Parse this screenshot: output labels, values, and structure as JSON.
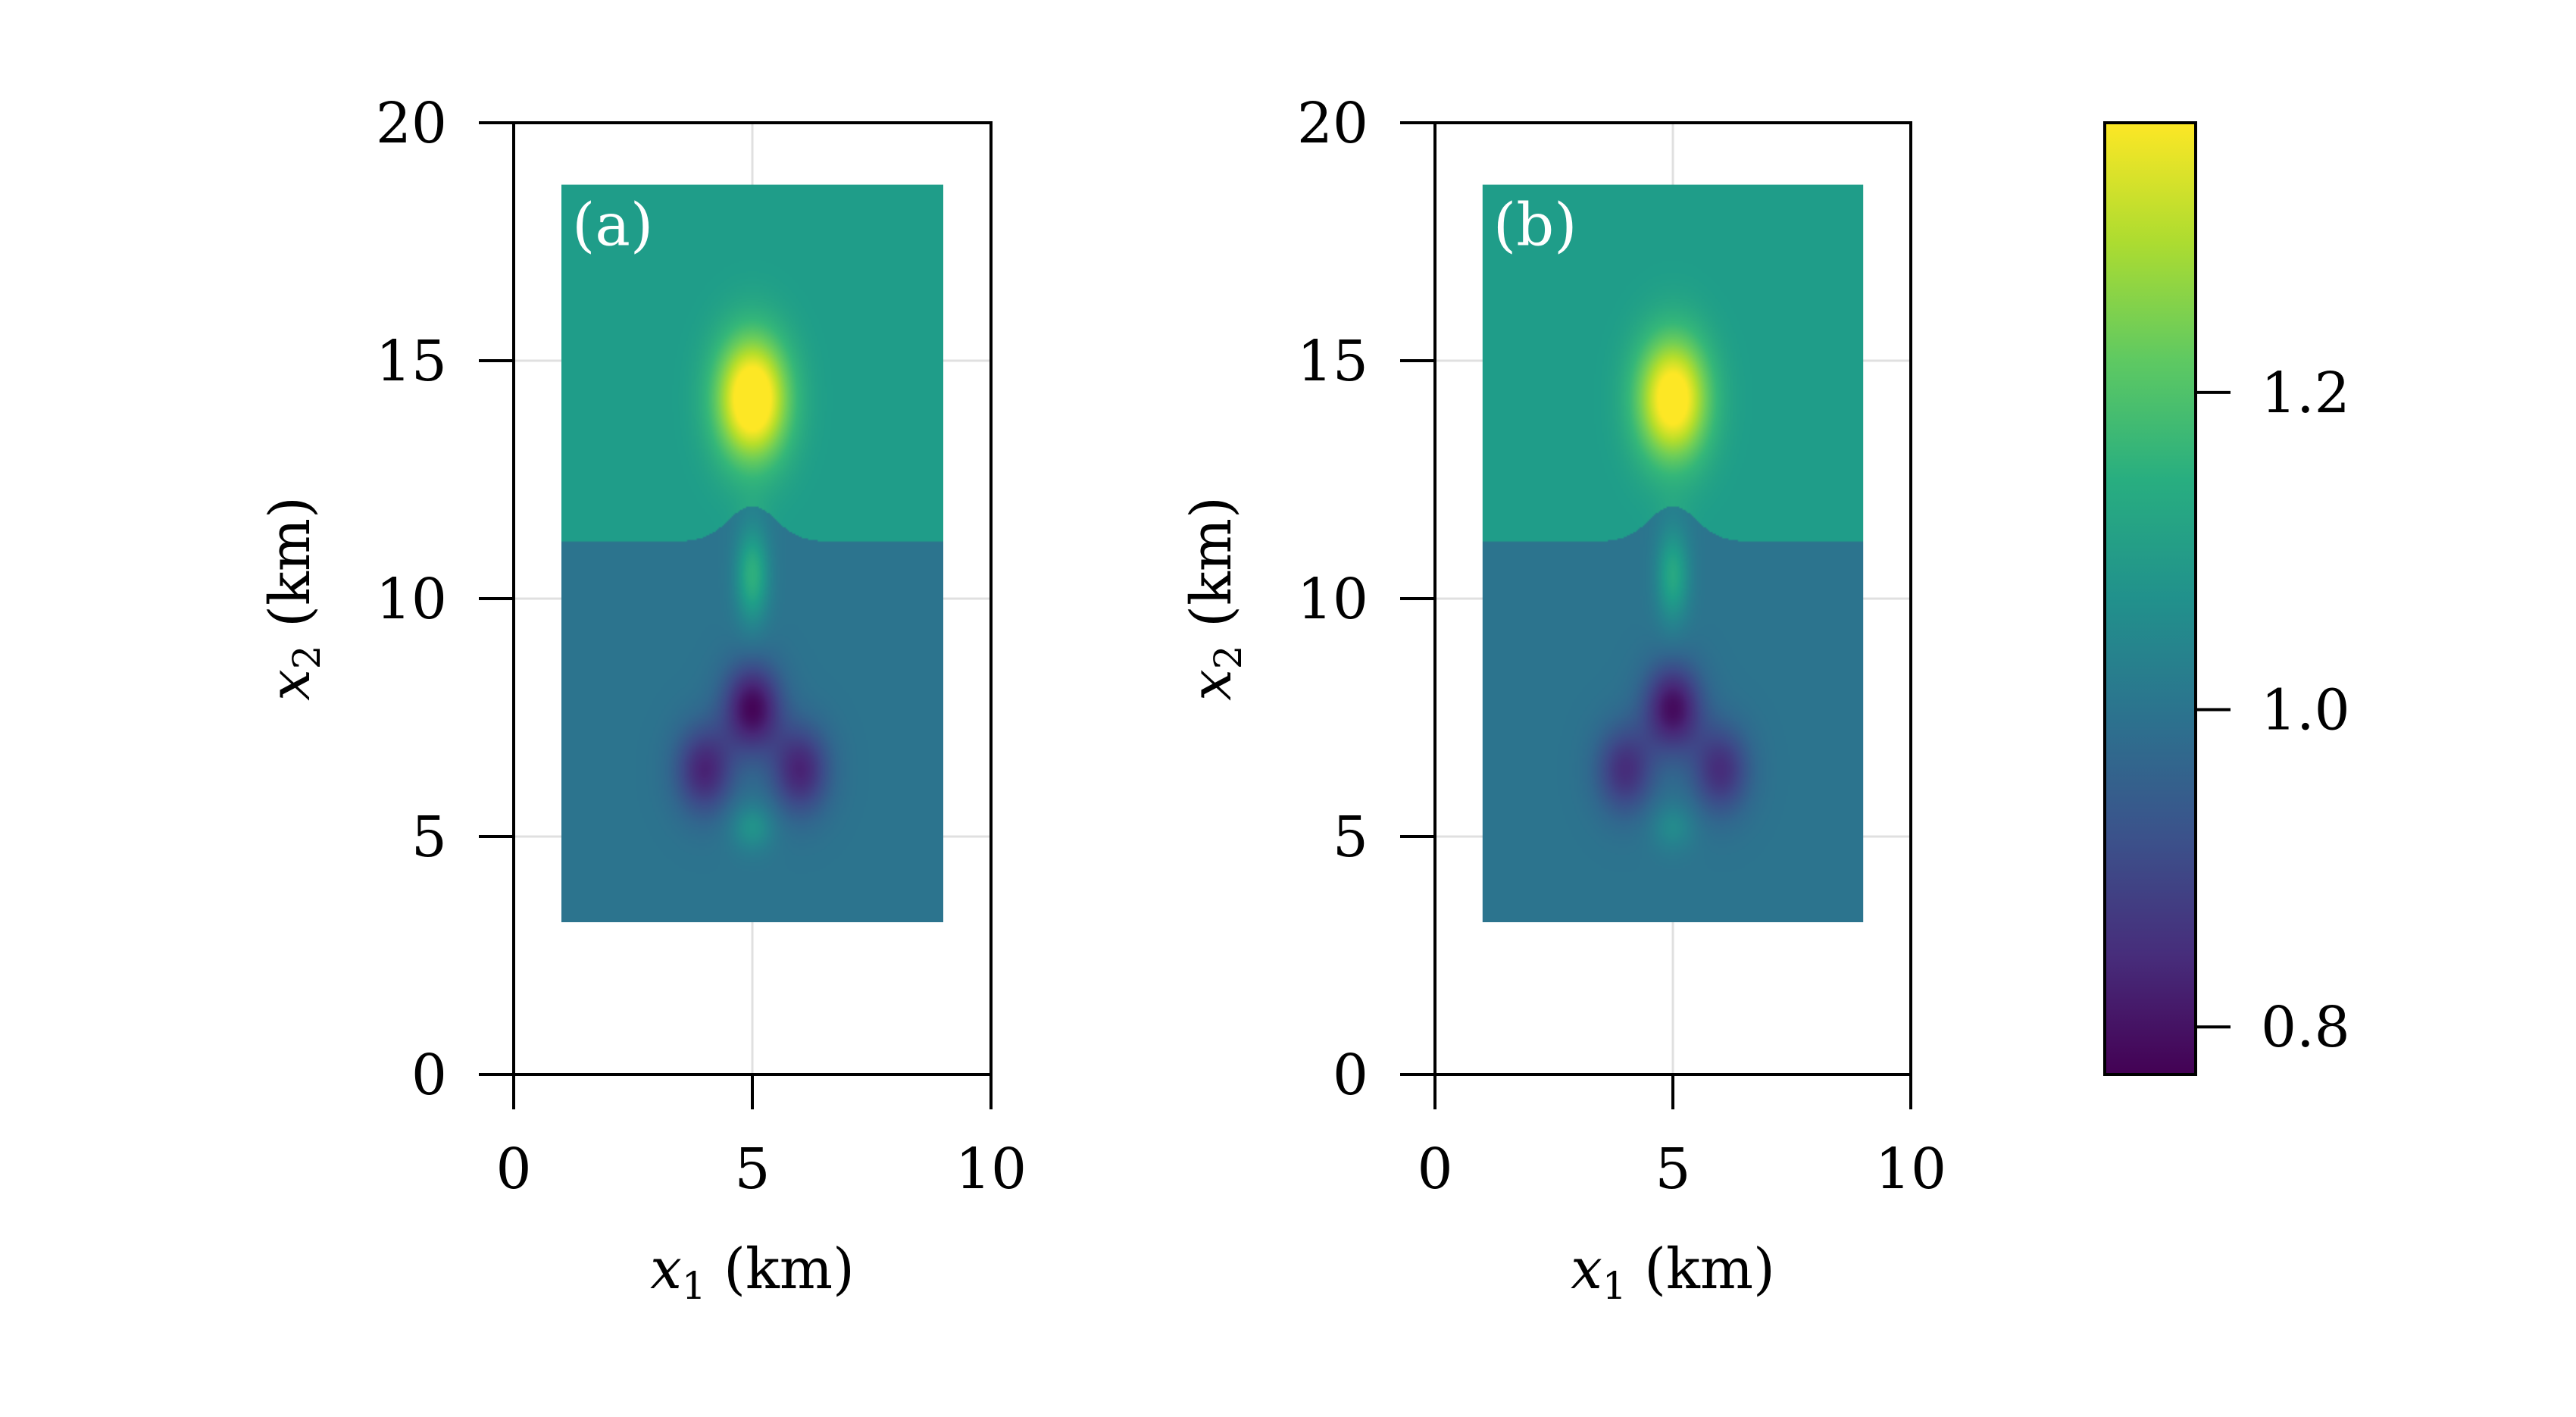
{
  "chart_data": [
    {
      "type": "heatmap",
      "panel_label": "(a)",
      "xlabel": "x1 (km)",
      "ylabel": "x2 (km)",
      "xlim": [
        0,
        10
      ],
      "ylim": [
        0,
        20
      ],
      "xticks": [
        "0",
        "5",
        "10"
      ],
      "yticks": [
        "0",
        "5",
        "10",
        "15",
        "20"
      ],
      "grid": true,
      "extent": {
        "x": [
          1,
          9
        ],
        "y": [
          3.2,
          18.7
        ]
      },
      "colormap": "viridis",
      "background_value": 1.0,
      "upper_layer": {
        "value": 1.1,
        "interface_km": 11.2,
        "bump_height_km": 0.75,
        "bump_width_km": 0.7
      },
      "features": [
        {
          "kind": "high",
          "x": 5,
          "y": 14.2,
          "value": 1.35
        },
        {
          "kind": "high",
          "x": 5,
          "y": 10.5,
          "value": 1.15
        },
        {
          "kind": "low",
          "x": 5,
          "y": 7.7,
          "value": 0.78
        },
        {
          "kind": "low",
          "x": 4.0,
          "y": 6.4,
          "value": 0.83
        },
        {
          "kind": "low",
          "x": 6.0,
          "y": 6.4,
          "value": 0.83
        },
        {
          "kind": "high",
          "x": 5,
          "y": 5.2,
          "value": 1.08
        }
      ]
    },
    {
      "type": "heatmap",
      "panel_label": "(b)",
      "xlabel": "x1 (km)",
      "ylabel": "x2 (km)",
      "xlim": [
        0,
        10
      ],
      "ylim": [
        0,
        20
      ],
      "xticks": [
        "0",
        "5",
        "10"
      ],
      "yticks": [
        "0",
        "5",
        "10",
        "15",
        "20"
      ],
      "grid": true,
      "extent": {
        "x": [
          1,
          9
        ],
        "y": [
          3.2,
          18.7
        ]
      },
      "colormap": "viridis",
      "background_value": 1.0,
      "upper_layer": {
        "value": 1.1,
        "interface_km": 11.2,
        "bump_height_km": 0.75,
        "bump_width_km": 0.7
      },
      "features": [
        {
          "kind": "high",
          "x": 5,
          "y": 14.2,
          "value": 1.32
        },
        {
          "kind": "high",
          "x": 5,
          "y": 10.5,
          "value": 1.13
        },
        {
          "kind": "low",
          "x": 5,
          "y": 7.7,
          "value": 0.79
        },
        {
          "kind": "low",
          "x": 4.0,
          "y": 6.4,
          "value": 0.85
        },
        {
          "kind": "low",
          "x": 6.0,
          "y": 6.4,
          "value": 0.85
        },
        {
          "kind": "high",
          "x": 5,
          "y": 5.2,
          "value": 1.06
        }
      ]
    }
  ],
  "colorbar": {
    "range": [
      0.77,
      1.37
    ],
    "ticks": [
      "0.8",
      "1.0",
      "1.2"
    ],
    "tick_values": [
      0.8,
      1.0,
      1.2
    ],
    "colormap": "viridis"
  }
}
